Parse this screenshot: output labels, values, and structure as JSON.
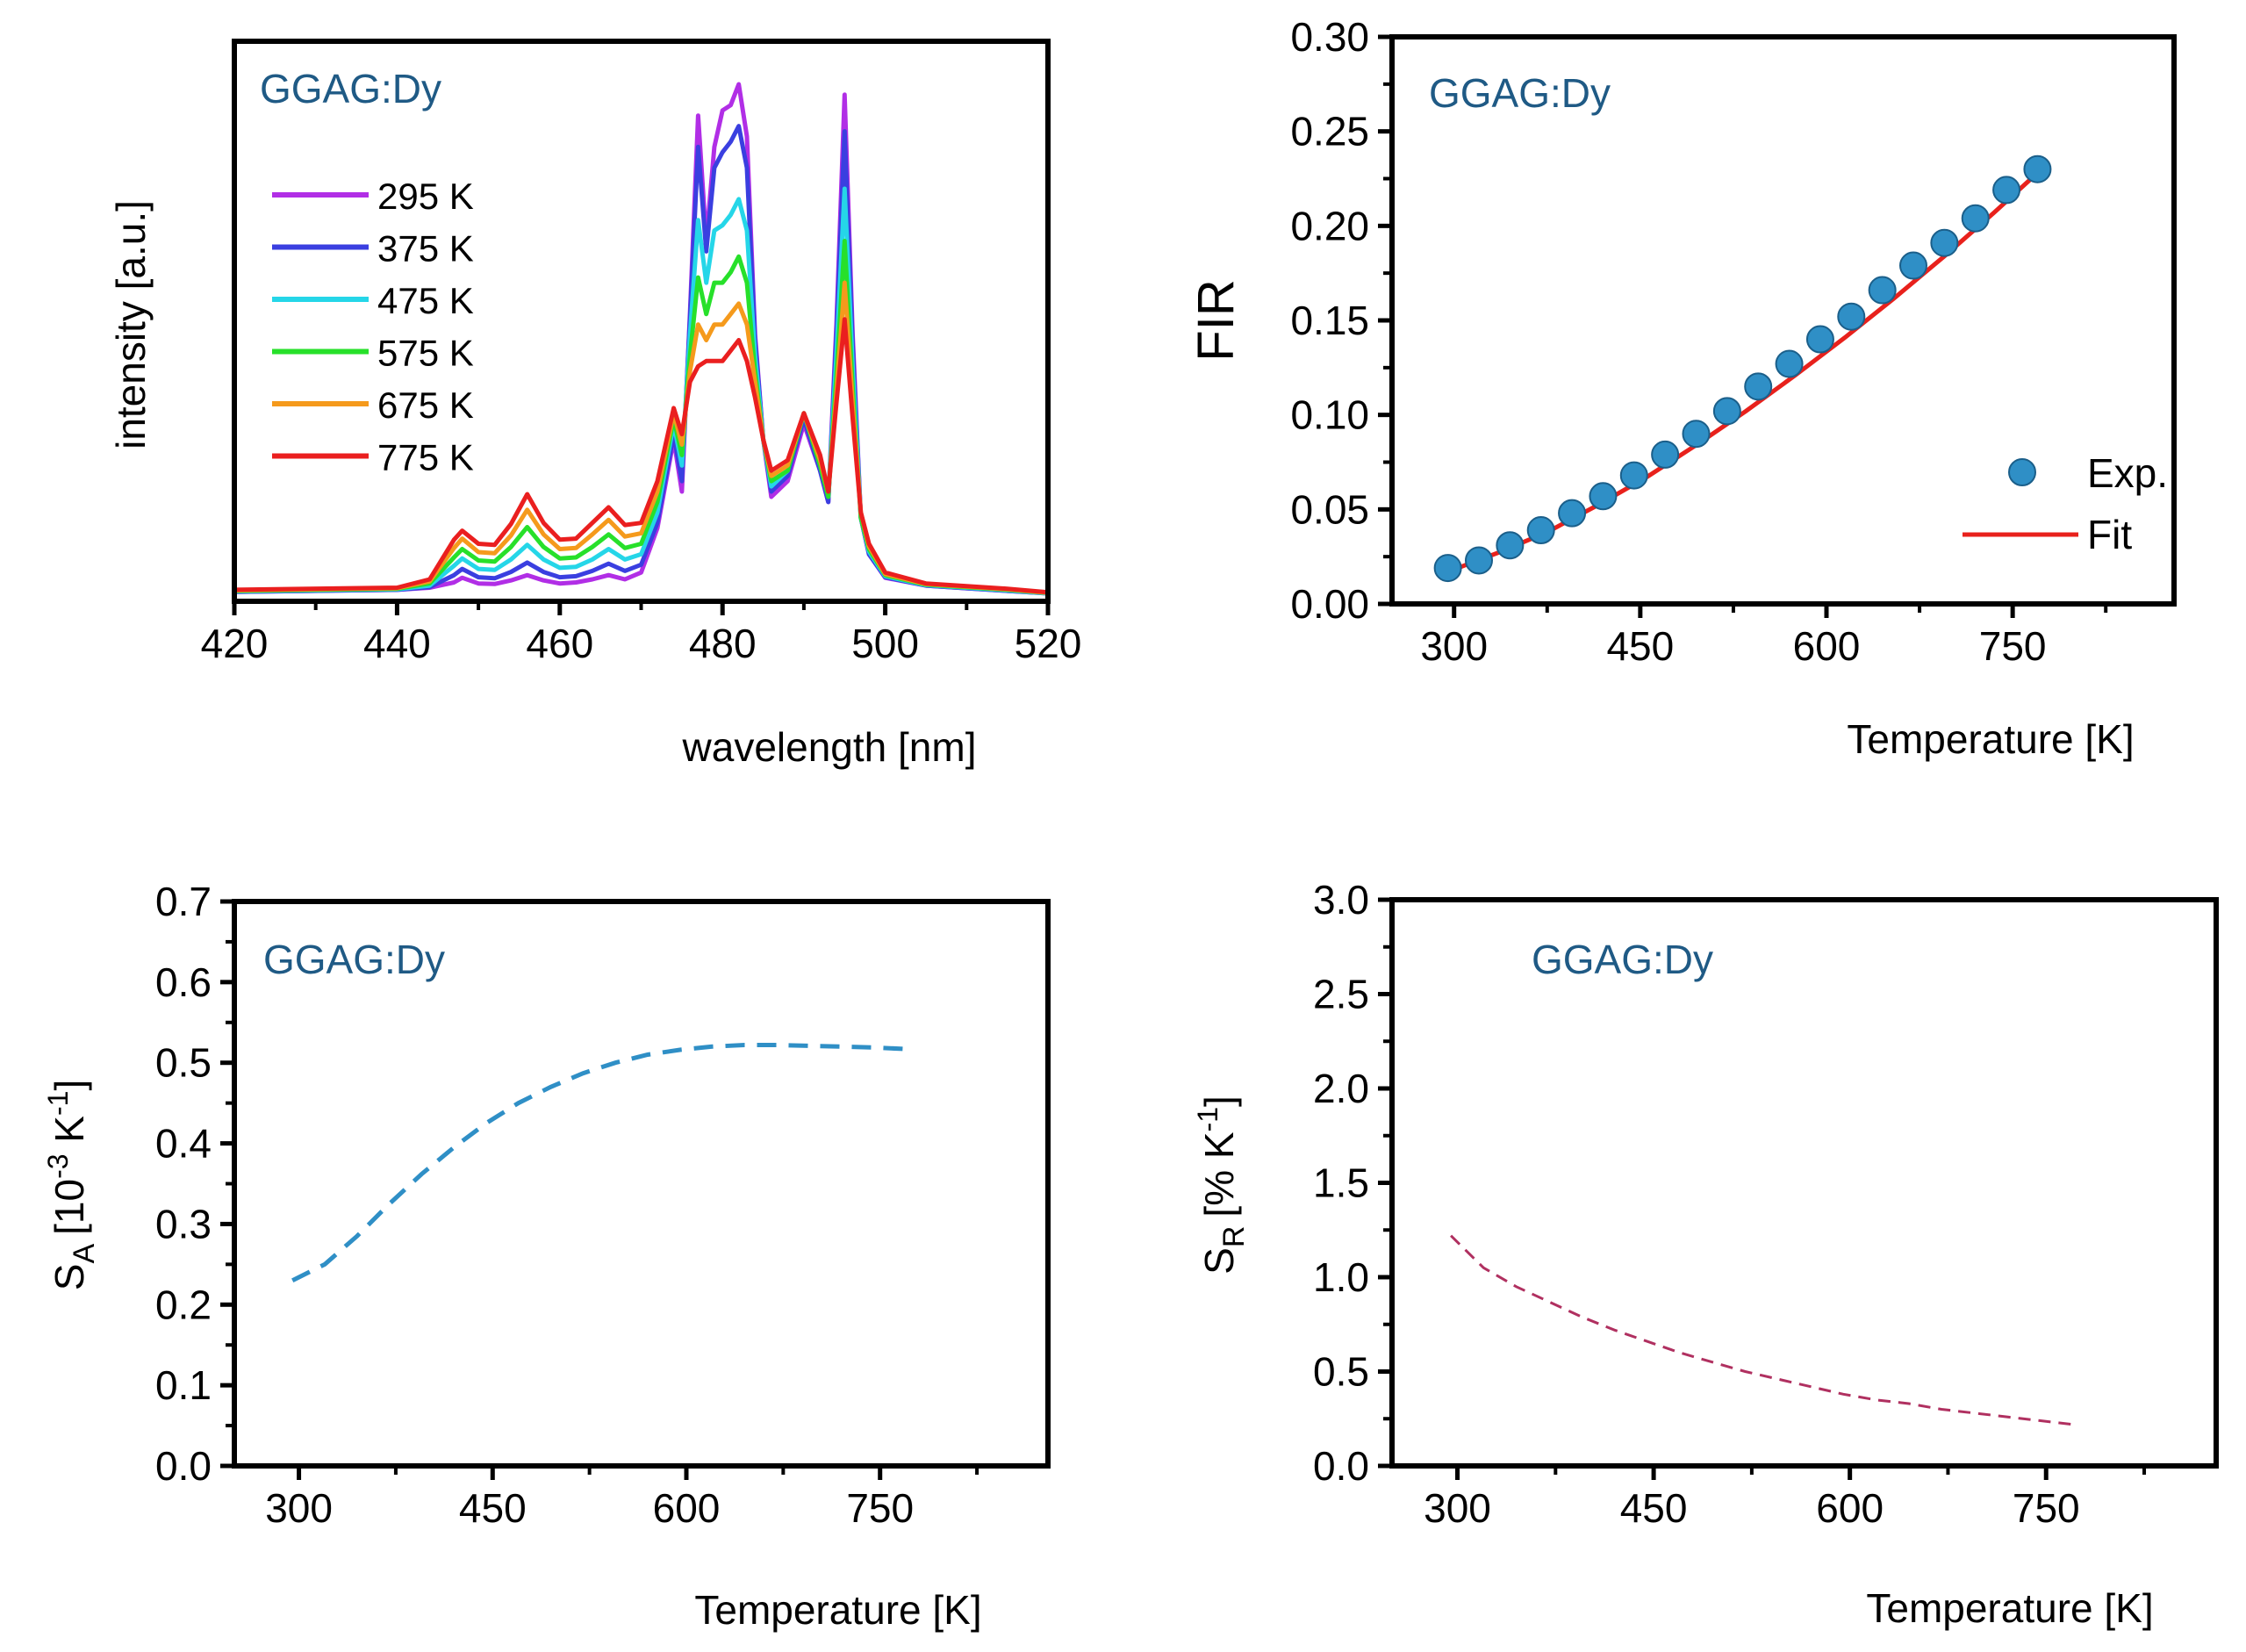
{
  "colors": {
    "axis": "#000000",
    "sample_label": "#1f5a85",
    "fir_points": "#2f8fc6",
    "fir_fit": "#e8211c",
    "sa_line": "#2f8fc6",
    "sr_line": "#b03060",
    "series": {
      "295 K": "#b12ee6",
      "375 K": "#3a3fe0",
      "475 K": "#25d6e8",
      "575 K": "#27e02a",
      "675 K": "#f59a1c",
      "775 K": "#ea1f1f"
    }
  },
  "chart_data": [
    {
      "id": "spectra",
      "type": "line",
      "annotation": "GGAG:Dy",
      "xlabel": "wavelength [nm]",
      "ylabel": "intensity [a.u.]",
      "xlim": [
        420,
        520
      ],
      "ylim": [
        0,
        1
      ],
      "xticks": [
        420,
        440,
        460,
        480,
        500,
        520
      ],
      "yticks": [],
      "legend_position": "left",
      "series": [
        {
          "name": "295 K",
          "scale": 0.2,
          "x": [
            420,
            440,
            444,
            447,
            448,
            450,
            452,
            454,
            456,
            458,
            460,
            462,
            464,
            466,
            468,
            470,
            472,
            474,
            475,
            476,
            477,
            478,
            479,
            480,
            481,
            482,
            483,
            484,
            485,
            486,
            488,
            490,
            492,
            493,
            494,
            495,
            496,
            497,
            498,
            500,
            505,
            510,
            515,
            520
          ],
          "y": [
            0.008,
            0.012,
            0.016,
            0.026,
            0.035,
            0.024,
            0.023,
            0.03,
            0.04,
            0.03,
            0.024,
            0.026,
            0.032,
            0.04,
            0.032,
            0.045,
            0.13,
            0.3,
            0.2,
            0.54,
            0.92,
            0.68,
            0.86,
            0.93,
            0.94,
            0.98,
            0.88,
            0.5,
            0.3,
            0.19,
            0.22,
            0.33,
            0.24,
            0.18,
            0.52,
            0.96,
            0.5,
            0.15,
            0.08,
            0.035,
            0.02,
            0.015,
            0.01,
            0.005
          ]
        },
        {
          "name": "375 K",
          "scale": 0.18,
          "x": [
            420,
            440,
            444,
            447,
            448,
            450,
            452,
            454,
            456,
            458,
            460,
            462,
            464,
            466,
            468,
            470,
            472,
            474,
            475,
            476,
            477,
            478,
            479,
            480,
            481,
            482,
            483,
            484,
            485,
            486,
            488,
            490,
            492,
            493,
            494,
            495,
            496,
            497,
            498,
            500,
            505,
            510,
            515,
            520
          ],
          "y": [
            0.008,
            0.012,
            0.017,
            0.04,
            0.052,
            0.036,
            0.034,
            0.046,
            0.064,
            0.046,
            0.036,
            0.038,
            0.048,
            0.062,
            0.048,
            0.06,
            0.14,
            0.31,
            0.22,
            0.53,
            0.86,
            0.66,
            0.82,
            0.85,
            0.87,
            0.9,
            0.82,
            0.49,
            0.3,
            0.2,
            0.23,
            0.34,
            0.24,
            0.18,
            0.5,
            0.89,
            0.48,
            0.15,
            0.08,
            0.036,
            0.02,
            0.015,
            0.01,
            0.005
          ]
        },
        {
          "name": "475 K",
          "scale": 0.17,
          "x": [
            420,
            440,
            444,
            447,
            448,
            450,
            452,
            454,
            456,
            458,
            460,
            462,
            464,
            466,
            468,
            470,
            472,
            474,
            475,
            476,
            477,
            478,
            479,
            480,
            481,
            482,
            483,
            484,
            485,
            486,
            488,
            490,
            492,
            493,
            494,
            495,
            496,
            497,
            498,
            500,
            505,
            510,
            515,
            520
          ],
          "y": [
            0.009,
            0.013,
            0.02,
            0.058,
            0.072,
            0.052,
            0.05,
            0.07,
            0.098,
            0.07,
            0.054,
            0.056,
            0.07,
            0.09,
            0.07,
            0.08,
            0.16,
            0.33,
            0.25,
            0.5,
            0.72,
            0.6,
            0.7,
            0.71,
            0.73,
            0.76,
            0.7,
            0.46,
            0.3,
            0.21,
            0.24,
            0.35,
            0.25,
            0.19,
            0.46,
            0.78,
            0.44,
            0.15,
            0.085,
            0.038,
            0.021,
            0.016,
            0.011,
            0.005
          ]
        },
        {
          "name": "575 K",
          "scale": 0.16,
          "x": [
            420,
            440,
            444,
            447,
            448,
            450,
            452,
            454,
            456,
            458,
            460,
            462,
            464,
            466,
            468,
            470,
            472,
            474,
            475,
            476,
            477,
            478,
            479,
            480,
            481,
            482,
            483,
            484,
            485,
            486,
            488,
            490,
            492,
            493,
            494,
            495,
            496,
            497,
            498,
            500,
            505,
            510,
            515,
            520
          ],
          "y": [
            0.01,
            0.014,
            0.024,
            0.074,
            0.09,
            0.068,
            0.066,
            0.094,
            0.132,
            0.094,
            0.072,
            0.074,
            0.094,
            0.118,
            0.092,
            0.1,
            0.18,
            0.34,
            0.27,
            0.46,
            0.61,
            0.54,
            0.6,
            0.6,
            0.62,
            0.65,
            0.6,
            0.43,
            0.3,
            0.22,
            0.24,
            0.35,
            0.25,
            0.19,
            0.42,
            0.68,
            0.4,
            0.15,
            0.09,
            0.04,
            0.022,
            0.017,
            0.012,
            0.006
          ]
        },
        {
          "name": "675 K",
          "scale": 0.155,
          "x": [
            420,
            440,
            444,
            447,
            448,
            450,
            452,
            454,
            456,
            458,
            460,
            462,
            464,
            466,
            468,
            470,
            472,
            474,
            475,
            476,
            477,
            478,
            479,
            480,
            481,
            482,
            483,
            484,
            485,
            486,
            488,
            490,
            492,
            493,
            494,
            495,
            496,
            497,
            498,
            500,
            505,
            510,
            515,
            520
          ],
          "y": [
            0.011,
            0.015,
            0.028,
            0.092,
            0.11,
            0.084,
            0.082,
            0.116,
            0.165,
            0.118,
            0.09,
            0.092,
            0.118,
            0.146,
            0.114,
            0.12,
            0.2,
            0.35,
            0.29,
            0.43,
            0.52,
            0.49,
            0.52,
            0.52,
            0.54,
            0.56,
            0.52,
            0.41,
            0.3,
            0.23,
            0.25,
            0.35,
            0.26,
            0.2,
            0.39,
            0.6,
            0.37,
            0.16,
            0.095,
            0.042,
            0.023,
            0.018,
            0.013,
            0.006
          ]
        },
        {
          "name": "775 K",
          "scale": 0.15,
          "x": [
            420,
            440,
            444,
            447,
            448,
            450,
            452,
            454,
            456,
            458,
            460,
            462,
            464,
            466,
            468,
            470,
            472,
            474,
            475,
            476,
            477,
            478,
            479,
            480,
            481,
            482,
            483,
            484,
            485,
            486,
            488,
            490,
            492,
            493,
            494,
            495,
            496,
            497,
            498,
            500,
            505,
            510,
            515,
            520
          ],
          "y": [
            0.012,
            0.016,
            0.032,
            0.108,
            0.125,
            0.1,
            0.098,
            0.138,
            0.195,
            0.14,
            0.108,
            0.11,
            0.14,
            0.17,
            0.136,
            0.14,
            0.22,
            0.36,
            0.31,
            0.41,
            0.44,
            0.45,
            0.45,
            0.45,
            0.47,
            0.49,
            0.45,
            0.38,
            0.3,
            0.24,
            0.26,
            0.35,
            0.27,
            0.2,
            0.37,
            0.53,
            0.34,
            0.16,
            0.1,
            0.045,
            0.024,
            0.019,
            0.014,
            0.007
          ]
        }
      ]
    },
    {
      "id": "fir",
      "type": "scatter",
      "annotation": "GGAG:Dy",
      "xlabel": "Temperature [K]",
      "ylabel": "FIR",
      "xlim": [
        250,
        880
      ],
      "ylim": [
        0.0,
        0.3
      ],
      "xticks": [
        300,
        450,
        600,
        750
      ],
      "yticks": [
        0.0,
        0.05,
        0.1,
        0.15,
        0.2,
        0.25,
        0.3
      ],
      "ytick_labels": [
        "0.00",
        "0.05",
        "0.10",
        "0.15",
        "0.20",
        "0.25",
        "0.30"
      ],
      "legend_position": "lower-right",
      "series": [
        {
          "name": "Exp.",
          "x": [
            295,
            320,
            345,
            370,
            395,
            420,
            445,
            470,
            495,
            520,
            545,
            570,
            595,
            620,
            645,
            670,
            695,
            720,
            745,
            770
          ],
          "y": [
            0.019,
            0.023,
            0.031,
            0.039,
            0.048,
            0.057,
            0.068,
            0.079,
            0.09,
            0.102,
            0.115,
            0.127,
            0.14,
            0.152,
            0.166,
            0.179,
            0.191,
            0.204,
            0.219,
            0.23
          ]
        },
        {
          "name": "Fit",
          "x": [
            295,
            335,
            375,
            415,
            455,
            495,
            535,
            575,
            615,
            655,
            695,
            735,
            770
          ],
          "y": [
            0.017,
            0.027,
            0.038,
            0.052,
            0.067,
            0.084,
            0.102,
            0.121,
            0.141,
            0.162,
            0.184,
            0.207,
            0.228
          ]
        }
      ]
    },
    {
      "id": "sa",
      "type": "line",
      "annotation": "GGAG:Dy",
      "xlabel": "Temperature [K]",
      "ylabel_main": "S",
      "ylabel_sub": "A",
      "ylabel_unit": "[10",
      "ylabel_unit_exp1": "-3",
      "ylabel_unit_mid": " K",
      "ylabel_unit_exp2": "-1",
      "ylabel_unit_end": "]",
      "xlim": [
        250,
        880
      ],
      "ylim": [
        0.0,
        0.7
      ],
      "xticks": [
        300,
        450,
        600,
        750
      ],
      "yticks": [
        0.0,
        0.1,
        0.2,
        0.3,
        0.4,
        0.5,
        0.6,
        0.7
      ],
      "ytick_labels": [
        "0.0",
        "0.1",
        "0.2",
        "0.3",
        "0.4",
        "0.5",
        "0.6",
        "0.7"
      ],
      "series": [
        {
          "x": [
            295,
            320,
            345,
            370,
            395,
            420,
            445,
            470,
            495,
            520,
            545,
            570,
            595,
            620,
            645,
            670,
            695,
            720,
            745,
            770
          ],
          "y": [
            0.23,
            0.25,
            0.285,
            0.325,
            0.362,
            0.395,
            0.425,
            0.45,
            0.47,
            0.487,
            0.5,
            0.51,
            0.516,
            0.52,
            0.522,
            0.522,
            0.521,
            0.52,
            0.519,
            0.517
          ]
        }
      ]
    },
    {
      "id": "sr",
      "type": "line",
      "annotation": "GGAG:Dy",
      "xlabel": "Temperature [K]",
      "ylabel_main": "S",
      "ylabel_sub": "R",
      "ylabel_unit": "[% K",
      "ylabel_unit_exp": "-1",
      "ylabel_unit_end": "]",
      "xlim": [
        250,
        880
      ],
      "ylim": [
        0.0,
        3.0
      ],
      "xticks": [
        300,
        450,
        600,
        750
      ],
      "yticks": [
        0.0,
        0.5,
        1.0,
        1.5,
        2.0,
        2.5,
        3.0
      ],
      "ytick_labels": [
        "0.0",
        "0.5",
        "1.0",
        "1.5",
        "2.0",
        "2.5",
        "3.0"
      ],
      "series": [
        {
          "x": [
            295,
            320,
            345,
            370,
            395,
            420,
            445,
            470,
            495,
            520,
            545,
            570,
            595,
            620,
            645,
            670,
            695,
            720,
            745,
            770
          ],
          "y": [
            1.22,
            1.05,
            0.95,
            0.87,
            0.79,
            0.72,
            0.66,
            0.6,
            0.55,
            0.5,
            0.46,
            0.42,
            0.38,
            0.35,
            0.33,
            0.3,
            0.28,
            0.26,
            0.24,
            0.22
          ]
        }
      ]
    }
  ]
}
